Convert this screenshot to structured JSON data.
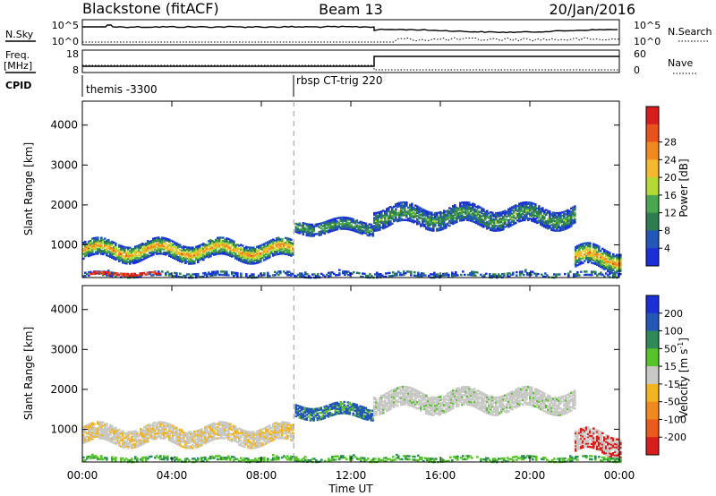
{
  "header": {
    "station": "Blackstone (fitACF)",
    "beam": "Beam 13",
    "date": "20/Jan/2016"
  },
  "top_panels": {
    "nsky_label": "N.Sky",
    "nsky_ticks": [
      "10^5",
      "10^0"
    ],
    "nsearch_label": "N.Search",
    "nsearch_ticks": [
      "10^5",
      "10^0"
    ],
    "freq_label": "Freq.",
    "freq_unit": "[MHz]",
    "freq_ticks": [
      "18",
      "8"
    ],
    "nave_label": "Nave",
    "nave_ticks": [
      "60",
      "0"
    ],
    "cpid_label": "CPID",
    "cpid_modes": [
      {
        "name": "themis -3300",
        "start_hour": 0.0
      },
      {
        "name": "rbsp CT-trig 220",
        "start_hour": 9.45
      }
    ]
  },
  "chart_data": [
    {
      "type": "heatmap",
      "name": "power",
      "ylabel": "Slant Range [km]",
      "xlabel": "",
      "xlim": [
        0,
        24
      ],
      "ylim": [
        180,
        4600
      ],
      "yticks": [
        "1000",
        "2000",
        "3000",
        "4000"
      ],
      "colorbar": {
        "label": "Power [dB]",
        "ticks": [
          "4",
          "8",
          "12",
          "16",
          "20",
          "24",
          "28"
        ],
        "colors": [
          "#1a2fd6",
          "#2257b8",
          "#2e7d4f",
          "#49a84f",
          "#b6d936",
          "#f5b82e",
          "#f08a1e",
          "#e8531c",
          "#d81d1d"
        ]
      },
      "features": [
        {
          "t_start": 0.0,
          "t_end": 9.4,
          "range_center": 850,
          "range_width": 420,
          "level": "high"
        },
        {
          "t_start": 9.5,
          "t_end": 13.0,
          "range_center": 1450,
          "range_width": 300,
          "level": "medium"
        },
        {
          "t_start": 13.0,
          "t_end": 22.0,
          "range_center": 1700,
          "range_width": 450,
          "level": "medium"
        },
        {
          "t_start": 22.0,
          "t_end": 24.0,
          "range_center": 650,
          "range_width": 500,
          "level": "high"
        }
      ]
    },
    {
      "type": "heatmap",
      "name": "velocity",
      "ylabel": "Slant Range [km]",
      "xlabel": "Time UT",
      "xlim": [
        0,
        24
      ],
      "ylim": [
        180,
        4600
      ],
      "xticks": [
        "00:00",
        "04:00",
        "08:00",
        "12:00",
        "16:00",
        "20:00",
        "00:00"
      ],
      "yticks": [
        "1000",
        "2000",
        "3000",
        "4000"
      ],
      "colorbar": {
        "label": "Velocity [m s",
        "label_sup": "-1",
        "label_end": "]",
        "ticks": [
          "200",
          "100",
          "50",
          "15",
          "-15",
          "-50",
          "-100",
          "-200"
        ],
        "colors": [
          "#1a2fd6",
          "#2257b8",
          "#2e8b57",
          "#56c32a",
          "#c8c8c4",
          "#f2b520",
          "#f08a1e",
          "#ea5a1c",
          "#d81d1d"
        ]
      }
    }
  ],
  "dashed_line_hour": 9.45
}
